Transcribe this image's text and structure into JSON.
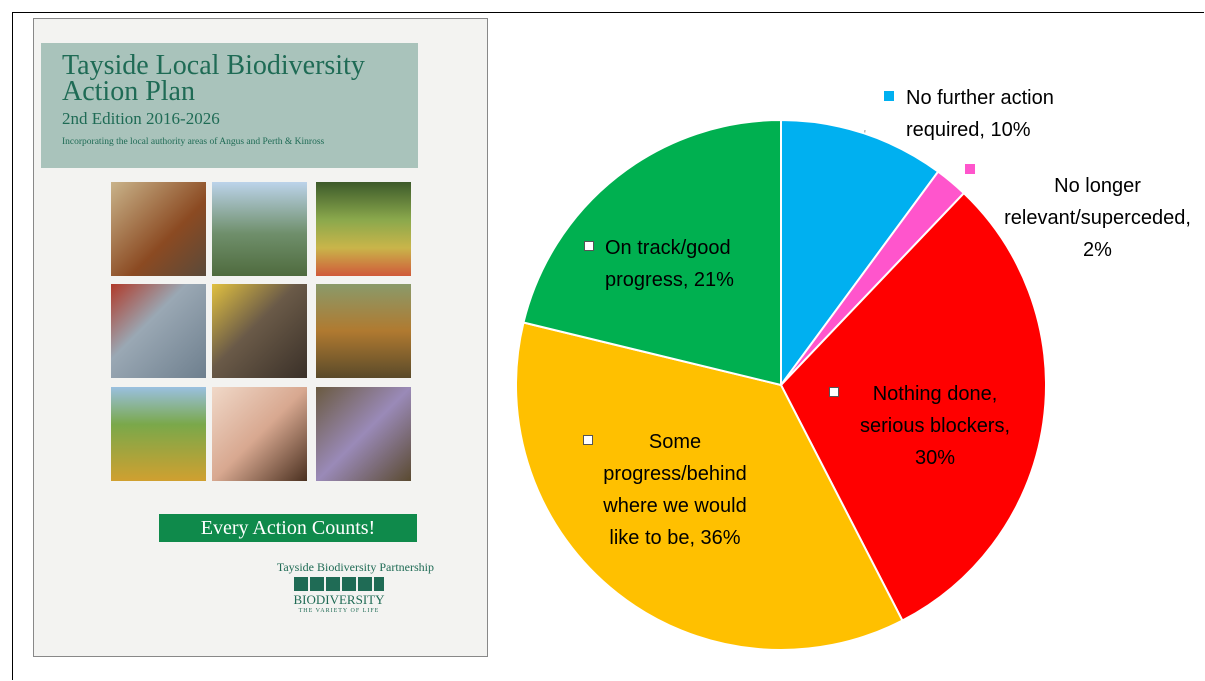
{
  "cover": {
    "title": "Tayside Local Biodiversity Action Plan",
    "edition": "2nd Edition 2016-2026",
    "subtitle": "Incorporating the local authority areas of Angus and Perth & Kinross",
    "banner": "Every Action Counts!",
    "partnership": "Tayside Biodiversity Partnership",
    "logo": "BIODIVERSITY",
    "tagline": "THE VARIETY OF LIFE"
  },
  "chart_data": {
    "type": "pie",
    "values": [
      10,
      2,
      30,
      36,
      21
    ],
    "value_labels": [
      "No further action required, 10%",
      "No longer relevant/superceded, 2%",
      "Nothing done, serious blockers, 30%",
      "Some progress/behind where we would like to be, 36%",
      "On track/good progress, 21%"
    ],
    "colors": [
      "#00b0f0",
      "#ff55cc",
      "#ff0000",
      "#ffc000",
      "#00b050"
    ]
  }
}
